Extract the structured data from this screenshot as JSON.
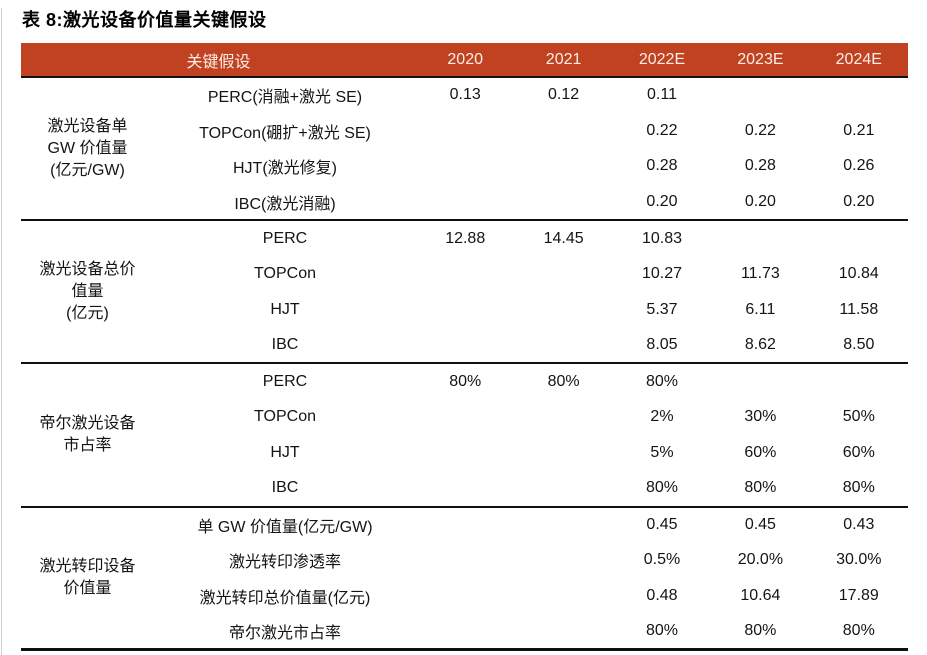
{
  "title": "表 8:激光设备价值量关键假设",
  "colors": {
    "header_bg": "#C14220",
    "header_text": "#FAEFE9"
  },
  "table": {
    "header": {
      "label_col": "关键假设",
      "year_cols": [
        "2020",
        "2021",
        "2022E",
        "2023E",
        "2024E"
      ]
    },
    "groups": [
      {
        "label": "激光设备单\nGW 价值量\n(亿元/GW)",
        "rows": [
          {
            "label": "PERC(消融+激光 SE)",
            "values": [
              "0.13",
              "0.12",
              "0.11",
              "",
              ""
            ]
          },
          {
            "label": "TOPCon(硼扩+激光 SE)",
            "values": [
              "",
              "",
              "0.22",
              "0.22",
              "0.21"
            ]
          },
          {
            "label": "HJT(激光修复)",
            "values": [
              "",
              "",
              "0.28",
              "0.28",
              "0.26"
            ]
          },
          {
            "label": "IBC(激光消融)",
            "values": [
              "",
              "",
              "0.20",
              "0.20",
              "0.20"
            ]
          }
        ]
      },
      {
        "label": "激光设备总价\n值量\n(亿元)",
        "rows": [
          {
            "label": "PERC",
            "values": [
              "12.88",
              "14.45",
              "10.83",
              "",
              ""
            ]
          },
          {
            "label": "TOPCon",
            "values": [
              "",
              "",
              "10.27",
              "11.73",
              "10.84"
            ]
          },
          {
            "label": "HJT",
            "values": [
              "",
              "",
              "5.37",
              "6.11",
              "11.58"
            ]
          },
          {
            "label": "IBC",
            "values": [
              "",
              "",
              "8.05",
              "8.62",
              "8.50"
            ]
          }
        ]
      },
      {
        "label": "帝尔激光设备\n市占率",
        "rows": [
          {
            "label": "PERC",
            "values": [
              "80%",
              "80%",
              "80%",
              "",
              ""
            ]
          },
          {
            "label": "TOPCon",
            "values": [
              "",
              "",
              "2%",
              "30%",
              "50%"
            ]
          },
          {
            "label": "HJT",
            "values": [
              "",
              "",
              "5%",
              "60%",
              "60%"
            ]
          },
          {
            "label": "IBC",
            "values": [
              "",
              "",
              "80%",
              "80%",
              "80%"
            ]
          }
        ]
      },
      {
        "label": "激光转印设备\n价值量",
        "rows": [
          {
            "label": "单 GW 价值量(亿元/GW)",
            "values": [
              "",
              "",
              "0.45",
              "0.45",
              "0.43"
            ]
          },
          {
            "label": "激光转印渗透率",
            "values": [
              "",
              "",
              "0.5%",
              "20.0%",
              "30.0%"
            ]
          },
          {
            "label": "激光转印总价值量(亿元)",
            "values": [
              "",
              "",
              "0.48",
              "10.64",
              "17.89"
            ]
          },
          {
            "label": "帝尔激光市占率",
            "values": [
              "",
              "",
              "80%",
              "80%",
              "80%"
            ]
          }
        ]
      }
    ]
  }
}
